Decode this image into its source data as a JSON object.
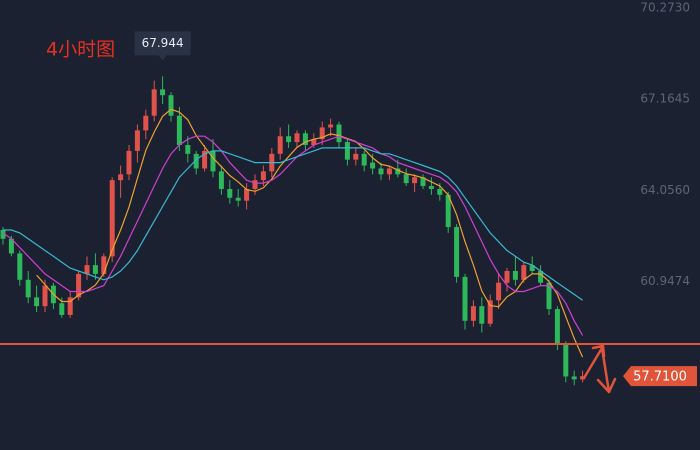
{
  "chart_data": {
    "type": "candlestick",
    "title": "4小时图",
    "up_color": "#e0534a",
    "down_color": "#2db85a",
    "ylim": [
      55.19,
      70.55
    ],
    "yticks": [
      {
        "value": 70.273,
        "label": "70.2730"
      },
      67.1645,
      {
        "value": 64.056,
        "label": "64.0560"
      },
      60.9474
    ],
    "open": [
      62.7,
      62.4,
      61.9,
      61.0,
      60.4,
      60.1,
      60.8,
      60.2,
      59.8,
      60.4,
      61.2,
      61.5,
      61.2,
      61.8,
      64.4,
      64.6,
      65.4,
      66.1,
      66.6,
      67.5,
      67.3,
      66.6,
      65.6,
      65.3,
      64.8,
      65.4,
      64.7,
      64.1,
      63.8,
      63.7,
      64.1,
      64.4,
      64.7,
      65.3,
      65.9,
      65.7,
      66.0,
      65.6,
      65.8,
      66.2,
      66.3,
      65.7,
      65.1,
      65.3,
      65.0,
      64.8,
      64.6,
      64.8,
      64.6,
      64.3,
      64.5,
      64.2,
      64.1,
      63.9,
      62.8,
      61.1,
      59.6,
      60.1,
      59.5,
      60.3,
      60.9,
      61.3,
      61.0,
      61.5,
      61.3,
      60.9,
      60.0,
      58.8,
      57.7,
      57.6
    ],
    "high": [
      62.8,
      62.5,
      62.0,
      61.3,
      60.8,
      61.0,
      60.9,
      60.4,
      60.6,
      61.3,
      61.8,
      61.9,
      61.9,
      64.5,
      64.9,
      65.6,
      66.3,
      66.8,
      67.8,
      67.944,
      67.4,
      66.9,
      65.9,
      65.4,
      65.6,
      65.8,
      64.9,
      64.4,
      64.1,
      64.3,
      64.6,
      64.9,
      65.5,
      66.2,
      66.3,
      66.1,
      66.1,
      66.0,
      66.4,
      66.5,
      66.4,
      65.8,
      65.5,
      65.4,
      65.3,
      65.0,
      64.9,
      65.1,
      64.8,
      64.6,
      64.6,
      64.5,
      64.3,
      64.0,
      62.9,
      61.2,
      60.3,
      60.4,
      60.5,
      61.2,
      61.4,
      61.8,
      61.6,
      61.8,
      61.5,
      61.0,
      60.1,
      58.9,
      57.9,
      57.9
    ],
    "low": [
      62.2,
      61.8,
      60.8,
      60.2,
      59.9,
      59.9,
      60.0,
      59.7,
      59.7,
      60.3,
      61.0,
      61.0,
      61.1,
      61.6,
      63.8,
      64.4,
      65.0,
      65.8,
      66.4,
      67.0,
      66.4,
      65.4,
      65.0,
      64.6,
      64.7,
      64.5,
      63.9,
      63.6,
      63.5,
      63.4,
      63.9,
      64.2,
      64.5,
      65.1,
      65.5,
      65.5,
      65.4,
      65.5,
      65.6,
      65.9,
      65.5,
      64.9,
      64.9,
      64.7,
      64.6,
      64.4,
      64.4,
      64.5,
      64.2,
      64.0,
      64.1,
      63.9,
      63.7,
      62.6,
      60.9,
      59.3,
      59.4,
      59.2,
      59.4,
      60.0,
      60.6,
      60.8,
      60.9,
      61.2,
      60.8,
      59.8,
      58.6,
      57.5,
      57.4,
      57.5
    ],
    "close": [
      62.4,
      61.9,
      61.0,
      60.4,
      60.1,
      60.8,
      60.2,
      59.8,
      60.4,
      61.2,
      61.5,
      61.2,
      61.8,
      64.4,
      64.6,
      65.4,
      66.1,
      66.6,
      67.5,
      67.3,
      66.6,
      65.6,
      65.3,
      64.8,
      65.4,
      64.7,
      64.1,
      63.8,
      63.7,
      64.1,
      64.4,
      64.7,
      65.3,
      65.9,
      65.7,
      66.0,
      65.6,
      65.8,
      66.2,
      66.3,
      65.7,
      65.1,
      65.3,
      64.9,
      64.8,
      64.6,
      64.8,
      64.6,
      64.3,
      64.5,
      64.2,
      64.1,
      63.9,
      62.8,
      61.1,
      59.6,
      60.1,
      59.5,
      60.3,
      60.9,
      61.3,
      61.0,
      61.5,
      61.3,
      60.9,
      60.0,
      58.8,
      57.7,
      57.6,
      57.71
    ],
    "series": [
      {
        "color": "#f0a030",
        "values": [
          null,
          null,
          null,
          null,
          61.16,
          60.84,
          60.5,
          60.26,
          60.26,
          60.48,
          60.62,
          60.82,
          61.22,
          62.02,
          62.7,
          63.48,
          64.46,
          65.42,
          66.04,
          66.58,
          66.82,
          66.72,
          66.46,
          65.92,
          65.54,
          65.16,
          64.86,
          64.56,
          64.34,
          64.08,
          64.02,
          64.14,
          64.44,
          64.88,
          65.2,
          65.52,
          65.7,
          65.8,
          65.86,
          65.98,
          65.92,
          65.82,
          65.72,
          65.46,
          65.16,
          64.94,
          64.88,
          64.74,
          64.62,
          64.56,
          64.48,
          64.34,
          64.2,
          63.9,
          63.22,
          62.3,
          61.5,
          60.62,
          60.12,
          60.08,
          60.42,
          60.6,
          61.0,
          61.2,
          61.2,
          60.94,
          60.5,
          59.74,
          59.0,
          58.36
        ]
      },
      {
        "color": "#d040d0",
        "values": [
          62.6,
          62.4,
          62.1,
          61.8,
          61.5,
          61.2,
          61.0,
          60.8,
          60.6,
          60.6,
          60.6,
          60.7,
          60.8,
          61.3,
          61.8,
          62.4,
          63.0,
          63.6,
          64.2,
          64.8,
          65.3,
          65.6,
          65.8,
          65.9,
          65.9,
          65.7,
          65.4,
          65.0,
          64.7,
          64.4,
          64.3,
          64.3,
          64.4,
          64.6,
          64.9,
          65.2,
          65.4,
          65.6,
          65.7,
          65.8,
          65.9,
          65.8,
          65.7,
          65.6,
          65.5,
          65.3,
          65.2,
          65.0,
          64.9,
          64.8,
          64.7,
          64.6,
          64.5,
          64.3,
          64.0,
          63.5,
          62.9,
          62.3,
          61.7,
          61.2,
          60.8,
          60.6,
          60.6,
          60.7,
          60.8,
          60.8,
          60.6,
          60.2,
          59.6,
          59.1
        ]
      },
      {
        "color": "#3ab8d0",
        "values": [
          62.7,
          62.7,
          62.6,
          62.4,
          62.2,
          62.0,
          61.8,
          61.6,
          61.4,
          61.3,
          61.2,
          61.1,
          61.0,
          61.1,
          61.3,
          61.6,
          62.0,
          62.5,
          63.0,
          63.5,
          64.0,
          64.5,
          64.8,
          65.1,
          65.3,
          65.4,
          65.4,
          65.3,
          65.2,
          65.1,
          65.0,
          65.0,
          65.0,
          65.0,
          65.1,
          65.2,
          65.3,
          65.4,
          65.5,
          65.5,
          65.5,
          65.5,
          65.5,
          65.5,
          65.4,
          65.3,
          65.3,
          65.2,
          65.1,
          65.0,
          64.9,
          64.8,
          64.7,
          64.5,
          64.2,
          63.8,
          63.4,
          63.0,
          62.6,
          62.3,
          62.0,
          61.8,
          61.6,
          61.5,
          61.3,
          61.1,
          60.9,
          60.7,
          60.5,
          60.3
        ]
      }
    ],
    "max_label": 67.944,
    "hline": 58.81,
    "last_price": {
      "value": 57.71,
      "label": "57.7100"
    },
    "line_color": "#e0553a"
  }
}
